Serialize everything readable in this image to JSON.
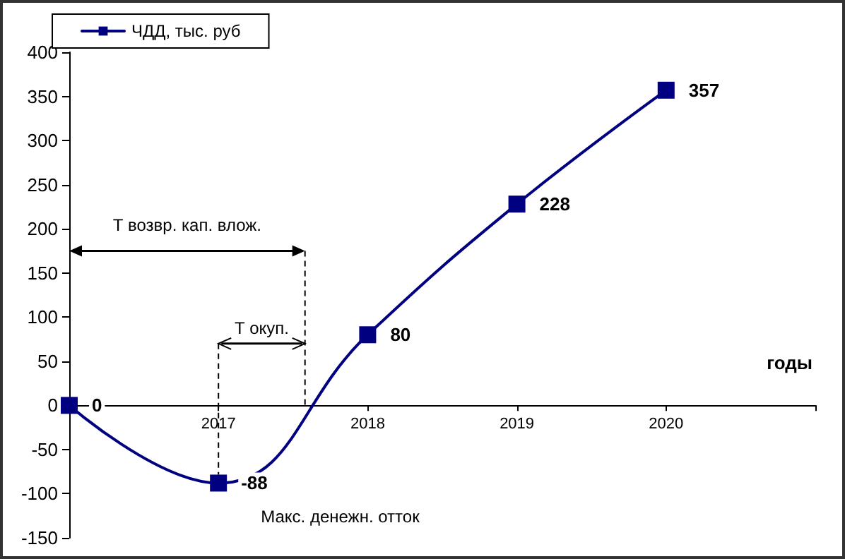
{
  "chart_data": {
    "type": "line",
    "xlabel": "годы",
    "categories": [
      null,
      "2017",
      "2018",
      "2019",
      "2020",
      null
    ],
    "series": [
      {
        "name": "ЧДД, тыс. руб",
        "color": "#000080",
        "values": [
          0,
          -88,
          80,
          228,
          357,
          null
        ]
      }
    ],
    "ylim": [
      -150,
      400
    ],
    "yticks": [
      -150,
      -100,
      -50,
      0,
      50,
      100,
      150,
      200,
      250,
      300,
      350,
      400
    ],
    "annotations": [
      "Т возвр. кап. влож.",
      {
        "text": "Т окуп.",
        "x": "2017",
        "y": -88
      },
      {
        "text": "Макс. денежн. отток",
        "x": "2017",
        "y": -88
      }
    ],
    "data_labels": true,
    "marker": "square",
    "line_style": "solid",
    "legend": "top left",
    "grid": false
  }
}
